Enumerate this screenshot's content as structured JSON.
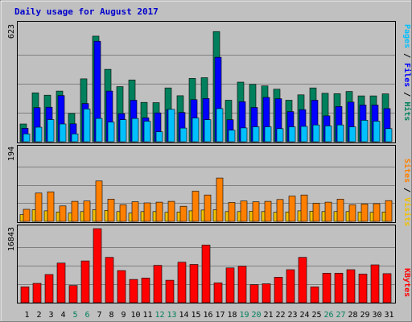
{
  "title": "Daily usage for August 2017",
  "colors": {
    "background": "#C0C0C0",
    "title": "#0000CC",
    "hits": "#00805C",
    "files": "#0000FF",
    "pages": "#00C0FF",
    "visits": "#F0C000",
    "sites": "#FF8000",
    "kbytes": "#FF0000",
    "weekend_day": "#00805C",
    "weekday": "#000000"
  },
  "chart_data": [
    {
      "type": "bar",
      "ymax_label": "623",
      "ylim": [
        0,
        623
      ],
      "grid": true,
      "series_labels": {
        "pages": "Pages",
        "files": "Files",
        "hits": "Hits"
      },
      "separator": " / ",
      "categories": [
        "1",
        "2",
        "3",
        "4",
        "5",
        "6",
        "7",
        "8",
        "9",
        "10",
        "11",
        "12",
        "13",
        "14",
        "15",
        "16",
        "17",
        "18",
        "19",
        "20",
        "21",
        "22",
        "23",
        "24",
        "25",
        "26",
        "27",
        "28",
        "29",
        "30",
        "31"
      ],
      "series": [
        {
          "name": "Hits",
          "values": [
            95,
            262,
            250,
            272,
            152,
            338,
            567,
            389,
            296,
            332,
            211,
            210,
            289,
            247,
            340,
            344,
            592,
            223,
            320,
            308,
            300,
            282,
            223,
            252,
            289,
            260,
            258,
            270,
            246,
            246,
            257
          ]
        },
        {
          "name": "Files",
          "values": [
            72,
            183,
            185,
            248,
            96,
            205,
            540,
            272,
            151,
            223,
            128,
            155,
            172,
            157,
            226,
            232,
            454,
            118,
            215,
            184,
            238,
            231,
            162,
            172,
            223,
            139,
            189,
            213,
            197,
            197,
            178
          ]
        },
        {
          "name": "Pages",
          "values": [
            42,
            78,
            119,
            95,
            42,
            176,
            125,
            105,
            118,
            125,
            110,
            53,
            174,
            73,
            127,
            118,
            178,
            62,
            74,
            80,
            80,
            70,
            80,
            82,
            90,
            85,
            90,
            80,
            115,
            110,
            70
          ]
        }
      ]
    },
    {
      "type": "bar",
      "ymax_label": "194",
      "ylim": [
        0,
        194
      ],
      "grid": true,
      "series_labels": {
        "sites": "Sites",
        "visits": "Visits"
      },
      "separator": " / ",
      "categories": [
        "1",
        "2",
        "3",
        "4",
        "5",
        "6",
        "7",
        "8",
        "9",
        "10",
        "11",
        "12",
        "13",
        "14",
        "15",
        "16",
        "17",
        "18",
        "19",
        "20",
        "21",
        "22",
        "23",
        "24",
        "25",
        "26",
        "27",
        "28",
        "29",
        "30",
        "31"
      ],
      "series": [
        {
          "name": "Visits",
          "values": [
            18,
            31,
            28,
            25,
            22,
            26,
            31,
            29,
            26,
            22,
            26,
            26,
            24,
            25,
            28,
            30,
            31,
            26,
            26,
            27,
            26,
            24,
            25,
            28,
            27,
            26,
            26,
            26,
            25,
            24,
            25
          ]
        },
        {
          "name": "Sites",
          "values": [
            32,
            75,
            78,
            41,
            53,
            54,
            107,
            59,
            44,
            52,
            49,
            51,
            53,
            40,
            80,
            70,
            115,
            50,
            54,
            52,
            53,
            58,
            67,
            70,
            48,
            51,
            59,
            44,
            46,
            47,
            55
          ]
        }
      ]
    },
    {
      "type": "bar",
      "ymax_label": "16843",
      "ylim": [
        0,
        16843
      ],
      "grid": true,
      "series_labels": {
        "kbytes": "KBytes"
      },
      "categories": [
        "1",
        "2",
        "3",
        "4",
        "5",
        "6",
        "7",
        "8",
        "9",
        "10",
        "11",
        "12",
        "13",
        "14",
        "15",
        "16",
        "17",
        "18",
        "19",
        "20",
        "21",
        "22",
        "23",
        "24",
        "25",
        "26",
        "27",
        "28",
        "29",
        "30",
        "31"
      ],
      "series": [
        {
          "name": "KBytes",
          "values": [
            3600,
            4400,
            6400,
            9000,
            3900,
            9500,
            16843,
            10300,
            7300,
            5300,
            5600,
            8500,
            5100,
            9200,
            8700,
            13100,
            4500,
            7900,
            8300,
            4100,
            4300,
            5800,
            7500,
            10300,
            3600,
            6700,
            6700,
            7500,
            6500,
            8600,
            6600
          ]
        }
      ]
    }
  ]
}
